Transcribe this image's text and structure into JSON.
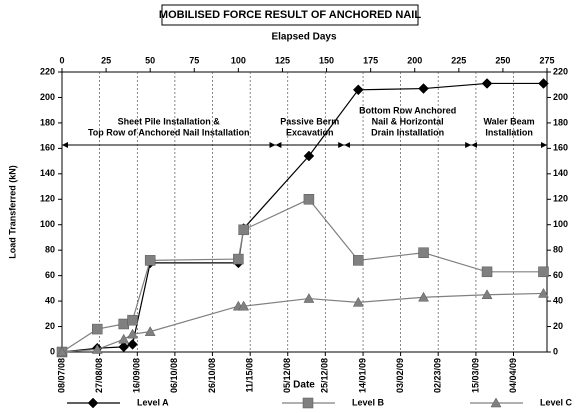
{
  "chart_data": {
    "type": "line",
    "title": "MOBILISED FORCE RESULT OF ANCHORED NAIL",
    "top_axis_label": "Elapsed Days",
    "x_label": "Date",
    "y_label": "Load Transferred (kN)",
    "xlim": [
      0,
      275
    ],
    "xticks": [
      0,
      25,
      50,
      75,
      100,
      125,
      150,
      175,
      200,
      225,
      250,
      275
    ],
    "date_ticks": [
      {
        "value": 0,
        "label": "08/07/08"
      },
      {
        "value": 21.3,
        "label": "27/08/08"
      },
      {
        "value": 42.7,
        "label": "16/09/08"
      },
      {
        "value": 64,
        "label": "06/10/08"
      },
      {
        "value": 85.3,
        "label": "26/10/08"
      },
      {
        "value": 106.7,
        "label": "11/15/08"
      },
      {
        "value": 128,
        "label": "05/12/08"
      },
      {
        "value": 149.3,
        "label": "25/12/08"
      },
      {
        "value": 170.7,
        "label": "14/01/09"
      },
      {
        "value": 192,
        "label": "03/02/09"
      },
      {
        "value": 213.3,
        "label": "02/23/09"
      },
      {
        "value": 234.7,
        "label": "15/03/09"
      },
      {
        "value": 256,
        "label": "04/04/09"
      }
    ],
    "ylim": [
      0,
      220
    ],
    "yticks": [
      0,
      20,
      40,
      60,
      80,
      100,
      120,
      140,
      160,
      180,
      200,
      220
    ],
    "y2lim": [
      0,
      220
    ],
    "y2ticks": [
      0,
      20,
      40,
      60,
      80,
      100,
      120,
      140,
      160,
      180,
      200,
      220
    ],
    "grid": true,
    "x": [
      0,
      20,
      35,
      40,
      50,
      100,
      103,
      140,
      168,
      205,
      241,
      273
    ],
    "series": [
      {
        "name": "Level A",
        "color": "#000000",
        "marker": "diamond",
        "values": [
          0,
          3,
          4,
          6,
          70,
          70,
          97,
          154,
          206,
          207,
          211,
          211
        ]
      },
      {
        "name": "Level B",
        "color": "#808080",
        "marker": "square",
        "values": [
          0,
          18,
          22,
          25,
          72,
          73,
          96,
          120,
          72,
          78,
          63,
          63
        ]
      },
      {
        "name": "Level C",
        "color": "#808080",
        "marker": "triangle",
        "values": [
          0,
          2,
          10,
          14,
          16,
          36,
          36,
          42,
          39,
          43,
          45,
          46
        ]
      }
    ],
    "annotations": [
      {
        "lines": [
          "Sheet Pile Installation &",
          "Top Row of Anchored Nail Installation"
        ],
        "start": 0,
        "end": 121
      },
      {
        "lines": [
          "Passive Berm",
          "Excavation"
        ],
        "start": 121,
        "end": 160
      },
      {
        "lines": [
          "Bottom Row Anchored",
          "Nail & Horizontal",
          "Drain Installation"
        ],
        "start": 160,
        "end": 232
      },
      {
        "lines": [
          "Waler Beam",
          "Installation"
        ],
        "start": 232,
        "end": 275
      }
    ]
  }
}
